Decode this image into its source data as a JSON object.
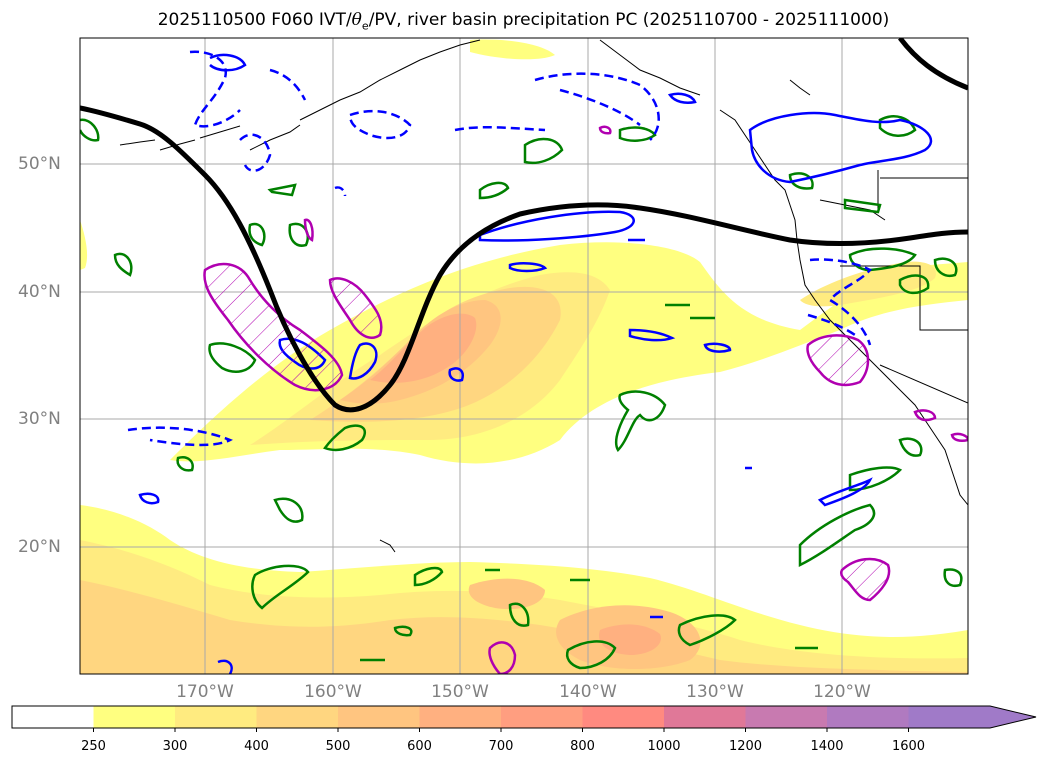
{
  "title": {
    "prefix": "2025110500 F060 IVT/",
    "theta": "θ",
    "sub": "e",
    "suffix": "/PV, river basin precipitation PC (2025110700 - 2025111000)"
  },
  "lat_labels": [
    "50°N",
    "40°N",
    "30°N",
    "20°N"
  ],
  "lon_labels": [
    "170°W",
    "160°W",
    "150°W",
    "140°W",
    "130°W",
    "120°W"
  ],
  "colorbar": {
    "labels": [
      "250",
      "300",
      "400",
      "500",
      "600",
      "700",
      "800",
      "1000",
      "1200",
      "1400",
      "1600"
    ],
    "colors": [
      "#ffffff",
      "#ffff80",
      "#ffeb80",
      "#ffd680",
      "#ffc580",
      "#ffb080",
      "#ff9e80",
      "#ff8a80",
      "#e07898",
      "#c87ab0",
      "#b07ac0",
      "#a07ac8"
    ]
  }
}
